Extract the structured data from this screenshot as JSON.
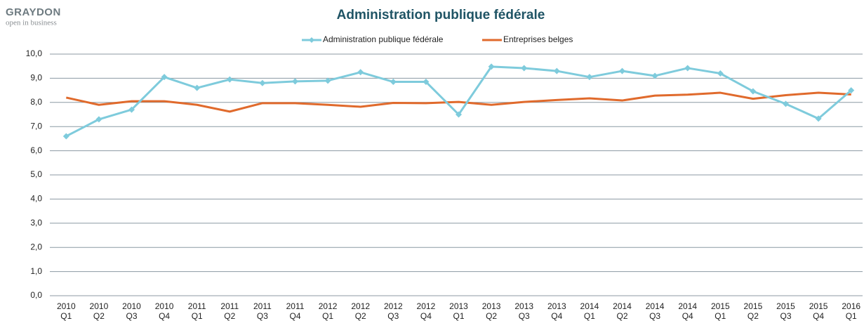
{
  "logo": {
    "name": "GRAYDON",
    "tagline": "open in business"
  },
  "chart_data": {
    "type": "line",
    "title": "Administration publique fédérale",
    "categories": [
      [
        "2010",
        "Q1"
      ],
      [
        "2010",
        "Q2"
      ],
      [
        "2010",
        "Q3"
      ],
      [
        "2010",
        "Q4"
      ],
      [
        "2011",
        "Q1"
      ],
      [
        "2011",
        "Q2"
      ],
      [
        "2011",
        "Q3"
      ],
      [
        "2011",
        "Q4"
      ],
      [
        "2012",
        "Q1"
      ],
      [
        "2012",
        "Q2"
      ],
      [
        "2012",
        "Q3"
      ],
      [
        "2012",
        "Q4"
      ],
      [
        "2013",
        "Q1"
      ],
      [
        "2013",
        "Q2"
      ],
      [
        "2013",
        "Q3"
      ],
      [
        "2013",
        "Q4"
      ],
      [
        "2014",
        "Q1"
      ],
      [
        "2014",
        "Q2"
      ],
      [
        "2014",
        "Q3"
      ],
      [
        "2014",
        "Q4"
      ],
      [
        "2015",
        "Q1"
      ],
      [
        "2015",
        "Q2"
      ],
      [
        "2015",
        "Q3"
      ],
      [
        "2015",
        "Q4"
      ],
      [
        "2016",
        "Q1"
      ]
    ],
    "series": [
      {
        "name": "Administration publique fédérale",
        "color": "#7ecbdc",
        "marker": "diamond",
        "values": [
          6.6,
          7.3,
          7.7,
          9.05,
          8.6,
          8.95,
          8.8,
          8.87,
          8.9,
          9.25,
          8.85,
          8.85,
          7.5,
          9.48,
          9.42,
          9.3,
          9.05,
          9.3,
          9.1,
          9.42,
          9.2,
          8.46,
          7.94,
          7.33,
          8.5
        ]
      },
      {
        "name": "Entreprises belges",
        "color": "#e06a2c",
        "values": [
          8.2,
          7.9,
          8.05,
          8.05,
          7.9,
          7.62,
          7.97,
          7.97,
          7.9,
          7.82,
          7.98,
          7.97,
          8.02,
          7.9,
          8.02,
          8.1,
          8.17,
          8.08,
          8.28,
          8.32,
          8.4,
          8.15,
          8.3,
          8.4,
          8.33
        ]
      }
    ],
    "ylim": [
      0,
      10
    ],
    "yticks": [
      {
        "value": 0,
        "label": "0,0"
      },
      {
        "value": 1,
        "label": "1,0"
      },
      {
        "value": 2,
        "label": "2,0"
      },
      {
        "value": 3,
        "label": "3,0"
      },
      {
        "value": 4,
        "label": "4,0"
      },
      {
        "value": 5,
        "label": "5,0"
      },
      {
        "value": 6,
        "label": "6,0"
      },
      {
        "value": 7,
        "label": "7,0"
      },
      {
        "value": 8,
        "label": "8,0"
      },
      {
        "value": 9,
        "label": "9,0"
      },
      {
        "value": 10,
        "label": "10,0"
      }
    ],
    "grid": true,
    "legend": "top"
  }
}
